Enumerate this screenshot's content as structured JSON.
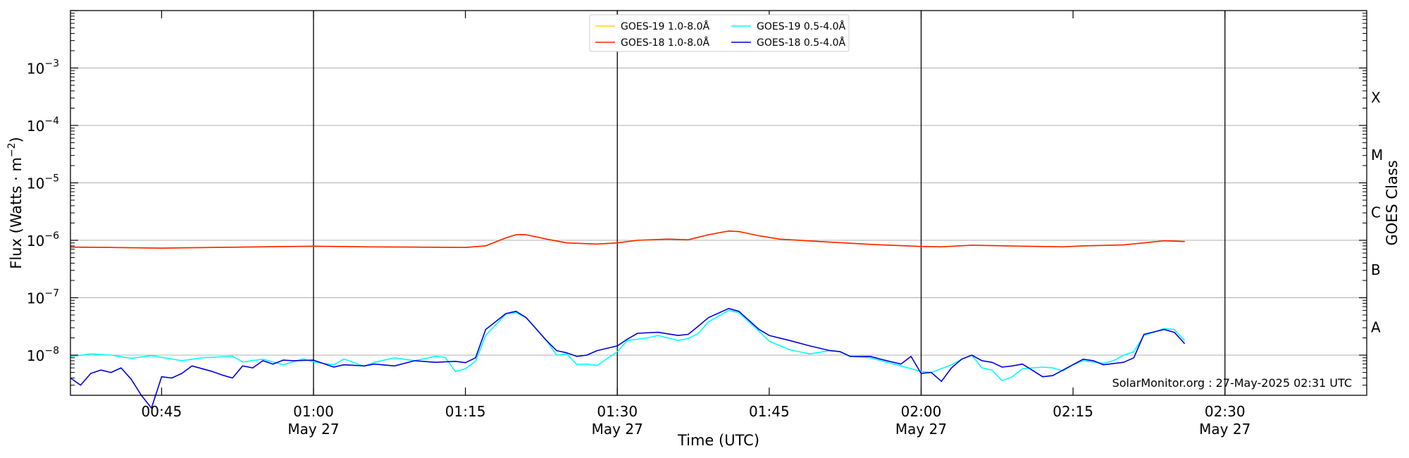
{
  "chart_data": {
    "type": "line",
    "xlabel": "Time (UTC)",
    "ylabel": "Flux (Watts · m",
    "ylabel_exponent": "−2",
    "ylabel_close": ")",
    "right_label": "GOES Class",
    "y_scale": "log",
    "ylim": [
      2e-09,
      0.01
    ],
    "xlim": [
      "00:36",
      "02:44"
    ],
    "y_ticks": [
      {
        "value": 1e-08,
        "base": "10",
        "exp": "−8"
      },
      {
        "value": 1e-07,
        "base": "10",
        "exp": "−7"
      },
      {
        "value": 1e-06,
        "base": "10",
        "exp": "−6"
      },
      {
        "value": 1e-05,
        "base": "10",
        "exp": "−5"
      },
      {
        "value": 0.0001,
        "base": "10",
        "exp": "−4"
      },
      {
        "value": 0.001,
        "base": "10",
        "exp": "−3"
      }
    ],
    "x_ticks": [
      {
        "time": "00:45",
        "label": "00:45",
        "date": ""
      },
      {
        "time": "01:00",
        "label": "01:00",
        "date": "May 27"
      },
      {
        "time": "01:15",
        "label": "01:15",
        "date": ""
      },
      {
        "time": "01:30",
        "label": "01:30",
        "date": "May 27"
      },
      {
        "time": "01:45",
        "label": "01:45",
        "date": ""
      },
      {
        "time": "02:00",
        "label": "02:00",
        "date": "May 27"
      },
      {
        "time": "02:15",
        "label": "02:15",
        "date": ""
      },
      {
        "time": "02:30",
        "label": "02:30",
        "date": "May 27"
      }
    ],
    "vertical_lines": [
      "01:00",
      "01:30",
      "02:00",
      "02:30"
    ],
    "grid": "horizontal",
    "goes_classes": [
      {
        "label": "A",
        "value": 3.16e-08
      },
      {
        "label": "B",
        "value": 3.16e-07
      },
      {
        "label": "C",
        "value": 3.16e-06
      },
      {
        "label": "M",
        "value": 3.16e-05
      },
      {
        "label": "X",
        "value": 0.000316
      }
    ],
    "legend_position": "top-center",
    "legend_entries": [
      {
        "text": "GOES-19 1.0-8.0Å",
        "color": "#ffd700"
      },
      {
        "text": "GOES-19 0.5-4.0Å",
        "color": "#00ffff"
      },
      {
        "text": "GOES-18 1.0-8.0Å",
        "color": "#ff2200"
      },
      {
        "text": "GOES-18 0.5-4.0Å",
        "color": "#0000dd"
      }
    ],
    "series": [
      {
        "name": "GOES-19 1.0-8.0Å",
        "color": "#ffd700",
        "points": [
          [
            "00:36",
            7.6e-07
          ],
          [
            "00:40",
            7.5e-07
          ],
          [
            "00:45",
            7.3e-07
          ],
          [
            "00:50",
            7.5e-07
          ],
          [
            "00:55",
            7.7e-07
          ],
          [
            "01:00",
            7.9e-07
          ],
          [
            "01:05",
            7.7e-07
          ],
          [
            "01:10",
            7.6e-07
          ],
          [
            "01:15",
            7.5e-07
          ],
          [
            "01:17",
            8e-07
          ],
          [
            "01:19",
            1.1e-06
          ],
          [
            "01:20",
            1.25e-06
          ],
          [
            "01:21",
            1.25e-06
          ],
          [
            "01:23",
            1.05e-06
          ],
          [
            "01:25",
            9e-07
          ],
          [
            "01:28",
            8.6e-07
          ],
          [
            "01:30",
            9e-07
          ],
          [
            "01:32",
            1e-06
          ],
          [
            "01:35",
            1.05e-06
          ],
          [
            "01:37",
            1.02e-06
          ],
          [
            "01:39",
            1.25e-06
          ],
          [
            "01:41",
            1.45e-06
          ],
          [
            "01:42",
            1.42e-06
          ],
          [
            "01:44",
            1.2e-06
          ],
          [
            "01:46",
            1.05e-06
          ],
          [
            "01:50",
            9.5e-07
          ],
          [
            "01:55",
            8.5e-07
          ],
          [
            "02:00",
            7.8e-07
          ],
          [
            "02:02",
            7.7e-07
          ],
          [
            "02:05",
            8.2e-07
          ],
          [
            "02:10",
            7.9e-07
          ],
          [
            "02:14",
            7.7e-07
          ],
          [
            "02:16",
            8e-07
          ],
          [
            "02:20",
            8.3e-07
          ],
          [
            "02:22",
            9e-07
          ],
          [
            "02:24",
            9.8e-07
          ],
          [
            "02:26",
            9.5e-07
          ]
        ]
      },
      {
        "name": "GOES-18 1.0-8.0Å",
        "color": "#ff2200",
        "points": [
          [
            "00:36",
            7.6e-07
          ],
          [
            "00:40",
            7.5e-07
          ],
          [
            "00:45",
            7.3e-07
          ],
          [
            "00:50",
            7.5e-07
          ],
          [
            "00:55",
            7.7e-07
          ],
          [
            "01:00",
            7.9e-07
          ],
          [
            "01:05",
            7.7e-07
          ],
          [
            "01:10",
            7.6e-07
          ],
          [
            "01:15",
            7.5e-07
          ],
          [
            "01:17",
            8e-07
          ],
          [
            "01:19",
            1.1e-06
          ],
          [
            "01:20",
            1.25e-06
          ],
          [
            "01:21",
            1.25e-06
          ],
          [
            "01:23",
            1.05e-06
          ],
          [
            "01:25",
            9e-07
          ],
          [
            "01:28",
            8.6e-07
          ],
          [
            "01:30",
            9e-07
          ],
          [
            "01:32",
            1e-06
          ],
          [
            "01:35",
            1.05e-06
          ],
          [
            "01:37",
            1.02e-06
          ],
          [
            "01:39",
            1.25e-06
          ],
          [
            "01:41",
            1.45e-06
          ],
          [
            "01:42",
            1.42e-06
          ],
          [
            "01:44",
            1.2e-06
          ],
          [
            "01:46",
            1.05e-06
          ],
          [
            "01:50",
            9.5e-07
          ],
          [
            "01:55",
            8.5e-07
          ],
          [
            "02:00",
            7.8e-07
          ],
          [
            "02:02",
            7.7e-07
          ],
          [
            "02:05",
            8.2e-07
          ],
          [
            "02:10",
            7.9e-07
          ],
          [
            "02:14",
            7.7e-07
          ],
          [
            "02:16",
            8e-07
          ],
          [
            "02:20",
            8.3e-07
          ],
          [
            "02:22",
            9e-07
          ],
          [
            "02:24",
            9.8e-07
          ],
          [
            "02:26",
            9.5e-07
          ]
        ]
      },
      {
        "name": "GOES-19 0.5-4.0Å",
        "color": "#00ffff",
        "points": [
          [
            "00:36",
            9.5e-09
          ],
          [
            "00:38",
            1.05e-08
          ],
          [
            "00:40",
            1e-08
          ],
          [
            "00:42",
            8.8e-09
          ],
          [
            "00:44",
            9.8e-09
          ],
          [
            "00:47",
            8e-09
          ],
          [
            "00:49",
            9e-09
          ],
          [
            "00:52",
            9.6e-09
          ],
          [
            "00:53",
            7.6e-09
          ],
          [
            "00:55",
            8.5e-09
          ],
          [
            "00:57",
            6.8e-09
          ],
          [
            "00:59",
            8.6e-09
          ],
          [
            "01:00",
            7.6e-09
          ],
          [
            "01:02",
            6.8e-09
          ],
          [
            "01:03",
            8.6e-09
          ],
          [
            "01:05",
            6.4e-09
          ],
          [
            "01:06",
            7.5e-09
          ],
          [
            "01:08",
            9e-09
          ],
          [
            "01:10",
            8e-09
          ],
          [
            "01:12",
            9.5e-09
          ],
          [
            "01:13",
            9.2e-09
          ],
          [
            "01:14",
            5.2e-09
          ],
          [
            "01:15",
            5.8e-09
          ],
          [
            "01:16",
            7.8e-09
          ],
          [
            "01:17",
            2.2e-08
          ],
          [
            "01:19",
            5.2e-08
          ],
          [
            "01:20",
            5.5e-08
          ],
          [
            "01:21",
            4.5e-08
          ],
          [
            "01:23",
            1.8e-08
          ],
          [
            "01:24",
            1e-08
          ],
          [
            "01:25",
            1.05e-08
          ],
          [
            "01:26",
            6.9e-09
          ],
          [
            "01:27",
            7e-09
          ],
          [
            "01:28",
            6.6e-09
          ],
          [
            "01:30",
            1.15e-08
          ],
          [
            "01:31",
            1.8e-08
          ],
          [
            "01:33",
            2e-08
          ],
          [
            "01:34",
            2.2e-08
          ],
          [
            "01:36",
            1.8e-08
          ],
          [
            "01:37",
            1.95e-08
          ],
          [
            "01:38",
            2.4e-08
          ],
          [
            "01:39",
            3.8e-08
          ],
          [
            "01:41",
            6e-08
          ],
          [
            "01:42",
            5.5e-08
          ],
          [
            "01:44",
            2.6e-08
          ],
          [
            "01:45",
            1.75e-08
          ],
          [
            "01:47",
            1.25e-08
          ],
          [
            "01:49",
            1.05e-08
          ],
          [
            "01:51",
            1.2e-08
          ],
          [
            "01:52",
            1.15e-08
          ],
          [
            "01:53",
            9.5e-09
          ],
          [
            "01:55",
            9e-09
          ],
          [
            "01:56",
            8e-09
          ],
          [
            "01:58",
            6.5e-09
          ],
          [
            "02:00",
            5.2e-09
          ],
          [
            "02:01",
            5e-09
          ],
          [
            "02:03",
            6.8e-09
          ],
          [
            "02:04",
            8.5e-09
          ],
          [
            "02:05",
            1e-08
          ],
          [
            "02:06",
            6e-09
          ],
          [
            "02:07",
            5.5e-09
          ],
          [
            "02:08",
            3.6e-09
          ],
          [
            "02:09",
            4.2e-09
          ],
          [
            "02:10",
            5.8e-09
          ],
          [
            "02:12",
            6.2e-09
          ],
          [
            "02:13",
            6e-09
          ],
          [
            "02:14",
            5.3e-09
          ],
          [
            "02:15",
            6.8e-09
          ],
          [
            "02:16",
            8e-09
          ],
          [
            "02:18",
            7.2e-09
          ],
          [
            "02:19",
            8e-09
          ],
          [
            "02:20",
            1e-08
          ],
          [
            "02:21",
            1.15e-08
          ],
          [
            "02:22",
            2.2e-08
          ],
          [
            "02:24",
            2.9e-08
          ],
          [
            "02:25",
            2.8e-08
          ],
          [
            "02:26",
            1.8e-08
          ]
        ]
      },
      {
        "name": "GOES-18 0.5-4.0Å",
        "color": "#0000dd",
        "points": [
          [
            "00:36",
            4e-09
          ],
          [
            "00:37",
            3e-09
          ],
          [
            "00:38",
            4.8e-09
          ],
          [
            "00:39",
            5.5e-09
          ],
          [
            "00:40",
            5e-09
          ],
          [
            "00:41",
            6e-09
          ],
          [
            "00:42",
            3.8e-09
          ],
          [
            "00:43",
            2e-09
          ],
          [
            "00:44",
            1.2e-09
          ],
          [
            "00:45",
            4.2e-09
          ],
          [
            "00:46",
            4e-09
          ],
          [
            "00:47",
            4.8e-09
          ],
          [
            "00:48",
            6.5e-09
          ],
          [
            "00:50",
            5.2e-09
          ],
          [
            "00:51",
            4.5e-09
          ],
          [
            "00:52",
            4e-09
          ],
          [
            "00:53",
            6.5e-09
          ],
          [
            "00:54",
            6e-09
          ],
          [
            "00:55",
            8e-09
          ],
          [
            "00:56",
            7e-09
          ],
          [
            "00:57",
            8.2e-09
          ],
          [
            "00:58",
            8e-09
          ],
          [
            "01:00",
            8.2e-09
          ],
          [
            "01:02",
            6.2e-09
          ],
          [
            "01:03",
            6.8e-09
          ],
          [
            "01:05",
            6.5e-09
          ],
          [
            "01:06",
            7e-09
          ],
          [
            "01:08",
            6.5e-09
          ],
          [
            "01:10",
            8e-09
          ],
          [
            "01:12",
            7.5e-09
          ],
          [
            "01:14",
            7.8e-09
          ],
          [
            "01:15",
            7.4e-09
          ],
          [
            "01:16",
            9e-09
          ],
          [
            "01:17",
            2.8e-08
          ],
          [
            "01:19",
            5.3e-08
          ],
          [
            "01:20",
            5.8e-08
          ],
          [
            "01:21",
            4.5e-08
          ],
          [
            "01:23",
            1.8e-08
          ],
          [
            "01:24",
            1.2e-08
          ],
          [
            "01:25",
            1.1e-08
          ],
          [
            "01:26",
            9.5e-09
          ],
          [
            "01:27",
            1e-08
          ],
          [
            "01:28",
            1.2e-08
          ],
          [
            "01:30",
            1.45e-08
          ],
          [
            "01:31",
            1.9e-08
          ],
          [
            "01:32",
            2.4e-08
          ],
          [
            "01:34",
            2.5e-08
          ],
          [
            "01:36",
            2.2e-08
          ],
          [
            "01:37",
            2.3e-08
          ],
          [
            "01:38",
            3.2e-08
          ],
          [
            "01:39",
            4.5e-08
          ],
          [
            "01:41",
            6.5e-08
          ],
          [
            "01:42",
            5.8e-08
          ],
          [
            "01:44",
            2.8e-08
          ],
          [
            "01:45",
            2.2e-08
          ],
          [
            "01:47",
            1.8e-08
          ],
          [
            "01:49",
            1.45e-08
          ],
          [
            "01:51",
            1.2e-08
          ],
          [
            "01:52",
            1.15e-08
          ],
          [
            "01:53",
            9.5e-09
          ],
          [
            "01:55",
            9.5e-09
          ],
          [
            "01:56",
            8.5e-09
          ],
          [
            "01:58",
            7e-09
          ],
          [
            "01:59",
            9.5e-09
          ],
          [
            "02:00",
            4.8e-09
          ],
          [
            "02:01",
            5e-09
          ],
          [
            "02:02",
            3.5e-09
          ],
          [
            "02:03",
            6e-09
          ],
          [
            "02:04",
            8.5e-09
          ],
          [
            "02:05",
            1e-08
          ],
          [
            "02:06",
            8e-09
          ],
          [
            "02:07",
            7.5e-09
          ],
          [
            "02:08",
            6.2e-09
          ],
          [
            "02:09",
            6.5e-09
          ],
          [
            "02:10",
            7e-09
          ],
          [
            "02:12",
            4.2e-09
          ],
          [
            "02:13",
            4.4e-09
          ],
          [
            "02:14",
            5.5e-09
          ],
          [
            "02:16",
            8.5e-09
          ],
          [
            "02:17",
            8e-09
          ],
          [
            "02:18",
            6.8e-09
          ],
          [
            "02:20",
            7.5e-09
          ],
          [
            "02:21",
            9e-09
          ],
          [
            "02:22",
            2.3e-08
          ],
          [
            "02:24",
            2.8e-08
          ],
          [
            "02:25",
            2.5e-08
          ],
          [
            "02:26",
            1.6e-08
          ]
        ]
      }
    ],
    "credit": "SolarMonitor.org : 27-May-2025 02:31 UTC"
  }
}
